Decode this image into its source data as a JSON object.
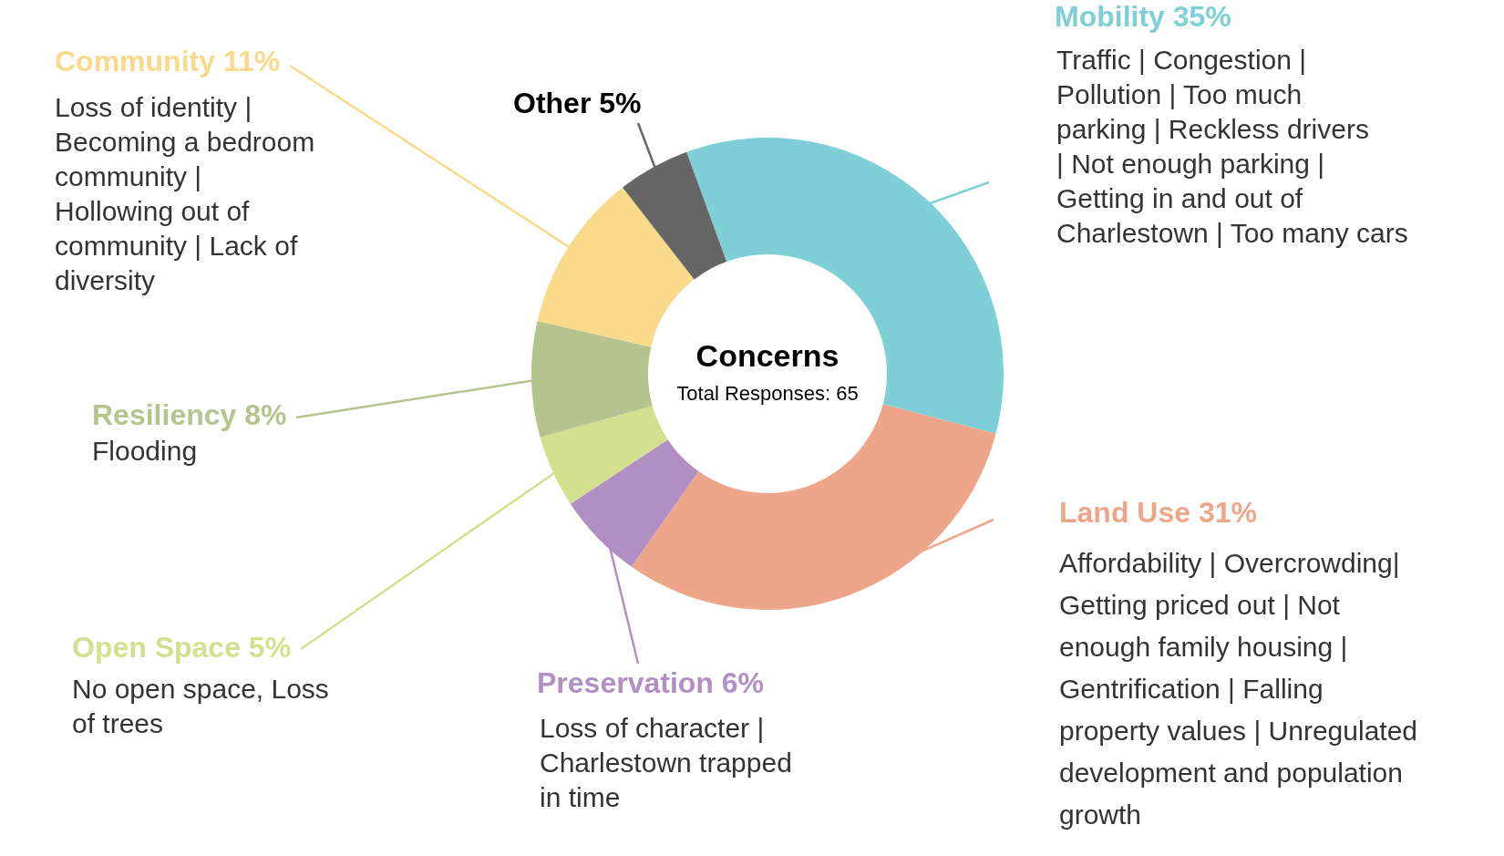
{
  "chart_data": {
    "type": "donut",
    "title": "Concerns",
    "subtitle": "Total Responses: 65",
    "categories": [
      "Mobility",
      "Land Use",
      "Preservation",
      "Open Space",
      "Resiliency",
      "Community",
      "Other"
    ],
    "values": [
      35,
      31,
      6,
      5,
      8,
      11,
      5
    ],
    "value_labels": [
      "35%",
      "31%",
      "6%",
      "5%",
      "8%",
      "11%",
      "5%"
    ],
    "colors": [
      "#7ecfd6",
      "#eda68a",
      "#b18fc4",
      "#d3e08f",
      "#b5c48e",
      "#f9d98a",
      "#666666"
    ],
    "annotations": [
      "Traffic | Congestion | Pollution | Too much parking | Reckless drivers | Not enough parking | Getting in and out of Charlestown | Too many cars",
      "Affordability | Overcrowding| Getting priced out | Not enough family housing | Gentrification | Falling property values | Unregulated development and population growth",
      "Loss of character | Charlestown trapped in time",
      "No open space, Loss of trees",
      "Flooding",
      "Loss of identity | Becoming a bedroom community | Hollowing out of community | Lack of diversity"
    ]
  }
}
